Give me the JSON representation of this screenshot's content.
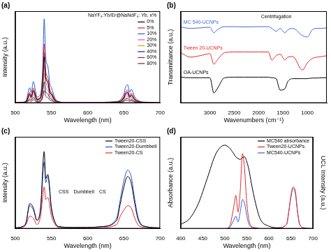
{
  "chart_data": [
    {
      "type": "line",
      "title": "(a)",
      "x_label": "Wavelength (nm)",
      "y_label": "Intensity (a.u.)",
      "xlim": [
        500,
        700
      ],
      "xticks": [
        500,
        550,
        600,
        650,
        700
      ],
      "ylim": [
        0,
        3
      ],
      "tick_labels": "x",
      "grid": false,
      "legend": "upper right",
      "legend_title": "NaYF₄:Yb/Er@NaNdF₄: Yb, x%",
      "x": [
        500,
        510,
        515,
        520,
        522,
        525,
        528,
        530,
        535,
        538,
        540,
        542,
        545,
        548,
        550,
        555,
        560,
        570,
        600,
        640,
        650,
        652,
        655,
        658,
        660,
        665,
        670,
        680,
        700
      ],
      "series": [
        {
          "name": "0%",
          "color": "#000000",
          "values": [
            0.01,
            0.02,
            0.04,
            0.28,
            0.19,
            0.39,
            0.22,
            0.11,
            0.17,
            0.66,
            1.51,
            0.83,
            0.66,
            0.33,
            0.28,
            0.08,
            0.03,
            0.01,
            0.01,
            0.03,
            0.17,
            0.28,
            0.33,
            0.19,
            0.25,
            0.11,
            0.04,
            0.02,
            0.01
          ]
        },
        {
          "name": "5%",
          "color": "#e41a1c",
          "values": [
            0.01,
            0.02,
            0.06,
            0.35,
            0.25,
            0.49,
            0.28,
            0.14,
            0.21,
            0.84,
            1.93,
            1.05,
            0.84,
            0.42,
            0.35,
            0.11,
            0.04,
            0.01,
            0.01,
            0.04,
            0.21,
            0.35,
            0.42,
            0.25,
            0.32,
            0.14,
            0.06,
            0.02,
            0.01
          ]
        },
        {
          "name": "10%",
          "color": "#1f5fd6",
          "values": [
            0.02,
            0.03,
            0.08,
            0.5,
            0.35,
            0.7,
            0.4,
            0.2,
            0.3,
            1.2,
            2.75,
            1.5,
            1.2,
            0.6,
            0.5,
            0.15,
            0.05,
            0.02,
            0.02,
            0.05,
            0.3,
            0.5,
            0.6,
            0.35,
            0.45,
            0.2,
            0.08,
            0.03,
            0.02
          ]
        },
        {
          "name": "20%",
          "color": "#ff40c0",
          "values": [
            0.01,
            0.01,
            0.04,
            0.23,
            0.16,
            0.32,
            0.18,
            0.09,
            0.14,
            0.54,
            1.24,
            0.68,
            0.54,
            0.27,
            0.23,
            0.07,
            0.02,
            0.01,
            0.01,
            0.02,
            0.14,
            0.23,
            0.27,
            0.16,
            0.2,
            0.09,
            0.04,
            0.01,
            0.01
          ]
        },
        {
          "name": "30%",
          "color": "#b5b500",
          "values": [
            0.01,
            0.01,
            0.03,
            0.18,
            0.12,
            0.25,
            0.14,
            0.07,
            0.11,
            0.42,
            0.96,
            0.53,
            0.42,
            0.21,
            0.18,
            0.05,
            0.02,
            0.01,
            0.01,
            0.02,
            0.11,
            0.18,
            0.21,
            0.12,
            0.16,
            0.07,
            0.03,
            0.01,
            0.01
          ]
        },
        {
          "name": "40%",
          "color": "#1a1a8c",
          "values": [
            0.01,
            0.01,
            0.02,
            0.13,
            0.09,
            0.18,
            0.1,
            0.05,
            0.08,
            0.3,
            0.69,
            0.38,
            0.3,
            0.15,
            0.13,
            0.04,
            0.01,
            0.01,
            0.01,
            0.01,
            0.08,
            0.13,
            0.15,
            0.09,
            0.11,
            0.05,
            0.02,
            0.01,
            0.01
          ]
        },
        {
          "name": "60%",
          "color": "#8b1a8b",
          "values": [
            0.01,
            0.02,
            0.05,
            0.3,
            0.21,
            0.42,
            0.24,
            0.12,
            0.18,
            0.72,
            1.65,
            0.9,
            0.72,
            0.36,
            0.3,
            0.09,
            0.03,
            0.01,
            0.01,
            0.03,
            0.18,
            0.3,
            0.36,
            0.21,
            0.27,
            0.12,
            0.05,
            0.02,
            0.01
          ]
        },
        {
          "name": "80%",
          "color": "#8b1a1a",
          "values": [
            0,
            0,
            0.01,
            0.08,
            0.05,
            0.11,
            0.06,
            0.03,
            0.05,
            0.18,
            0.41,
            0.23,
            0.18,
            0.09,
            0.08,
            0.02,
            0.01,
            0,
            0,
            0.01,
            0.05,
            0.08,
            0.09,
            0.05,
            0.07,
            0.03,
            0.01,
            0,
            0
          ]
        }
      ]
    },
    {
      "type": "line",
      "title": "(b)",
      "x_label": "Wavenumbers (cm⁻¹)",
      "y_label": "Transmittance (a.u.)",
      "xlim": [
        3600,
        600
      ],
      "xticks": [
        3000,
        2500,
        2000,
        1500,
        1000
      ],
      "ylim": [
        0,
        3.2
      ],
      "tick_labels": "x",
      "grid": false,
      "annotations": [
        "Centrifugation"
      ],
      "x": [
        3600,
        3400,
        3200,
        3000,
        2920,
        2850,
        2700,
        2500,
        2300,
        2000,
        1800,
        1730,
        1640,
        1560,
        1460,
        1400,
        1300,
        1100,
        1000,
        900,
        800,
        700,
        600
      ],
      "series": [
        {
          "name": "MC 540-UCNPs",
          "color": "#4169e1",
          "values": [
            2.65,
            2.6,
            2.62,
            2.64,
            2.45,
            2.55,
            2.66,
            2.66,
            2.65,
            2.66,
            2.66,
            2.6,
            2.5,
            2.6,
            2.45,
            2.55,
            2.6,
            2.35,
            2.3,
            2.55,
            2.6,
            2.6,
            2.62
          ]
        },
        {
          "name": "Tween 20-UCNPs",
          "color": "#e8262a",
          "values": [
            1.75,
            1.6,
            1.65,
            1.72,
            1.35,
            1.5,
            1.75,
            1.78,
            1.78,
            1.78,
            1.78,
            1.5,
            1.65,
            1.7,
            1.5,
            1.6,
            1.62,
            1.15,
            1.4,
            1.55,
            1.6,
            1.62,
            1.65
          ]
        },
        {
          "name": "OA-UCNPs",
          "color": "#000000",
          "values": [
            0.9,
            0.88,
            0.88,
            0.88,
            0.35,
            0.5,
            0.88,
            0.9,
            0.9,
            0.9,
            0.9,
            0.88,
            0.85,
            0.45,
            0.5,
            0.75,
            0.85,
            0.85,
            0.85,
            0.87,
            0.87,
            0.88,
            0.88
          ]
        }
      ]
    },
    {
      "type": "line",
      "title": "(c)",
      "x_label": "Wavelength (nm)",
      "y_label": "Intensity (a.u.)",
      "xlim": [
        500,
        700
      ],
      "xticks": [
        500,
        550,
        600,
        650,
        700
      ],
      "ylim": [
        0,
        2.2
      ],
      "tick_labels": "x",
      "grid": false,
      "legend": "upper right",
      "annotations": [
        "CSS",
        "Dumbbell",
        "CS"
      ],
      "x": [
        500,
        510,
        515,
        520,
        525,
        530,
        535,
        540,
        542,
        545,
        550,
        555,
        560,
        580,
        600,
        620,
        640,
        645,
        650,
        655,
        660,
        665,
        670,
        680,
        700
      ],
      "series": [
        {
          "name": "Tween20-CSS",
          "color": "#000000",
          "values": [
            0.02,
            0.05,
            0.15,
            0.6,
            0.5,
            0.2,
            0.5,
            1.85,
            1.2,
            1.3,
            0.5,
            0.15,
            0.05,
            0.03,
            0.03,
            0.05,
            0.2,
            0.6,
            1.0,
            1.25,
            1.1,
            0.6,
            0.2,
            0.05,
            0.02
          ]
        },
        {
          "name": "Tween20-Dumbbell",
          "color": "#2b4fd8",
          "values": [
            0.02,
            0.05,
            0.15,
            0.55,
            0.45,
            0.2,
            0.45,
            1.6,
            1.1,
            1.25,
            0.45,
            0.15,
            0.05,
            0.03,
            0.03,
            0.05,
            0.25,
            0.7,
            1.15,
            1.4,
            1.25,
            0.7,
            0.25,
            0.05,
            0.02
          ]
        },
        {
          "name": "Tween20-CS",
          "color": "#e8262a",
          "values": [
            0.01,
            0.03,
            0.1,
            0.3,
            0.25,
            0.1,
            0.3,
            1.0,
            0.7,
            0.75,
            0.3,
            0.1,
            0.03,
            0.02,
            0.02,
            0.03,
            0.1,
            0.3,
            0.45,
            0.55,
            0.5,
            0.25,
            0.08,
            0.03,
            0.01
          ]
        }
      ]
    },
    {
      "type": "line",
      "title": "(d)",
      "x_label": "Wavelength (nm)",
      "y_label": "Absorbance (a.u.)",
      "y2_label": "UCL Intensity (a.u.)",
      "xlim": [
        400,
        700
      ],
      "xticks": [
        400,
        450,
        500,
        550,
        600,
        650,
        700
      ],
      "ylim": [
        0,
        1.1
      ],
      "y2lim": [
        0,
        1.1
      ],
      "tick_labels": "x",
      "grid": false,
      "legend": "upper right",
      "x": [
        400,
        420,
        440,
        460,
        480,
        500,
        510,
        520,
        525,
        530,
        535,
        540,
        545,
        550,
        555,
        560,
        570,
        580,
        600,
        620,
        640,
        645,
        650,
        655,
        660,
        665,
        670,
        680,
        700
      ],
      "series": [
        {
          "name": "MC540 absorbance",
          "color": "#000000",
          "values": [
            0.05,
            0.12,
            0.3,
            0.6,
            0.9,
            1.0,
            0.97,
            0.9,
            0.86,
            0.84,
            0.83,
            0.85,
            0.86,
            0.8,
            0.7,
            0.55,
            0.3,
            0.12,
            0.03,
            0.01,
            0,
            0,
            0,
            0,
            0,
            0,
            0,
            0,
            0
          ]
        },
        {
          "name": "Tween20-UCNPs",
          "color": "#e8262a",
          "axis": "y2",
          "values": [
            0,
            0,
            0,
            0,
            0,
            0,
            0.02,
            0.25,
            0.4,
            0.2,
            0.45,
            0.9,
            0.7,
            0.3,
            0.1,
            0.03,
            0.01,
            0,
            0,
            0.01,
            0.05,
            0.2,
            0.4,
            0.5,
            0.45,
            0.2,
            0.05,
            0.01,
            0
          ]
        },
        {
          "name": "MC540-UCNPs",
          "color": "#3b5bdb",
          "axis": "y2",
          "values": [
            0,
            0,
            0,
            0,
            0,
            0,
            0.01,
            0.1,
            0.15,
            0.08,
            0.2,
            0.35,
            0.3,
            0.15,
            0.05,
            0.02,
            0.01,
            0,
            0,
            0.01,
            0.05,
            0.2,
            0.38,
            0.48,
            0.42,
            0.2,
            0.05,
            0.01,
            0
          ]
        }
      ]
    }
  ]
}
